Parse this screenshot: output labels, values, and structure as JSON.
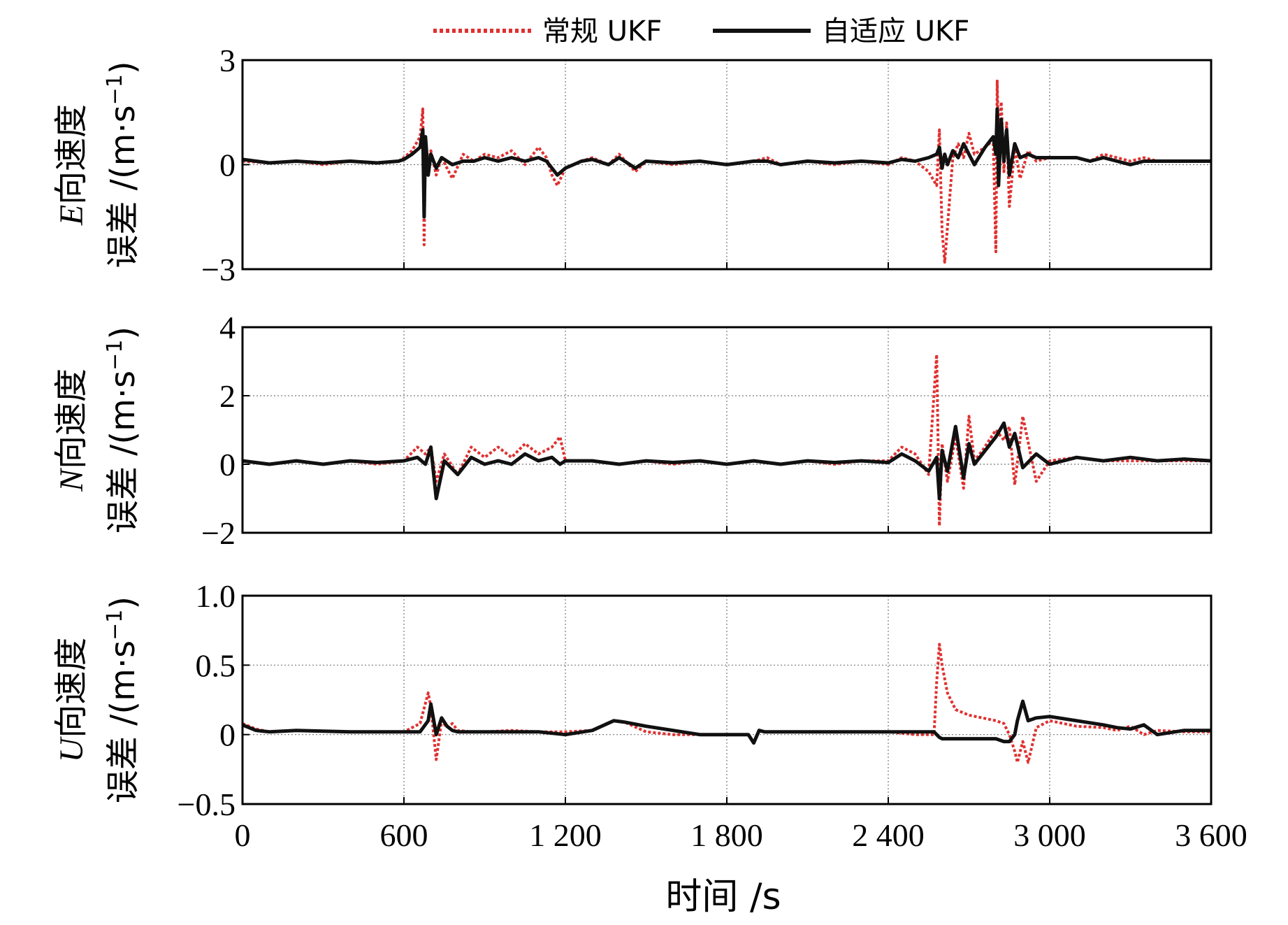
{
  "chart_data": [
    {
      "type": "line",
      "ylabel_var": "E",
      "ylabel_line1": "向速度",
      "ylabel_line2": "误差 /(m·s",
      "ylabel_sup": "−1",
      "ylabel_close": ")",
      "xlim": [
        0,
        3600
      ],
      "ylim": [
        -3,
        3
      ],
      "yticks": [
        -3,
        0,
        3
      ],
      "ytick_labels": [
        "−3",
        "0",
        "3"
      ],
      "grid": true,
      "series": [
        {
          "name": "常规 UKF",
          "color": "#e03030",
          "dash": "dotted",
          "x": [
            0,
            100,
            200,
            300,
            400,
            500,
            580,
            600,
            630,
            660,
            670,
            675,
            680,
            690,
            700,
            720,
            740,
            780,
            820,
            860,
            900,
            950,
            1000,
            1050,
            1100,
            1130,
            1150,
            1170,
            1200,
            1260,
            1300,
            1360,
            1400,
            1460,
            1500,
            1600,
            1700,
            1800,
            1900,
            1950,
            2000,
            2100,
            2200,
            2300,
            2400,
            2450,
            2500,
            2550,
            2580,
            2590,
            2600,
            2610,
            2620,
            2640,
            2660,
            2680,
            2700,
            2720,
            2760,
            2790,
            2800,
            2805,
            2810,
            2820,
            2830,
            2840,
            2850,
            2870,
            2890,
            2920,
            2950,
            3000,
            3100,
            3150,
            3200,
            3250,
            3300,
            3350,
            3400,
            3500,
            3600
          ],
          "y": [
            0.1,
            0.05,
            0.1,
            0.0,
            0.1,
            0.05,
            0.1,
            0.2,
            0.4,
            0.8,
            1.6,
            -2.3,
            0.6,
            0.0,
            0.4,
            -0.3,
            0.2,
            -0.4,
            0.3,
            0.1,
            0.3,
            0.2,
            0.4,
            0.0,
            0.5,
            0.2,
            -0.3,
            -0.6,
            -0.1,
            0.1,
            0.2,
            0.0,
            0.3,
            -0.2,
            0.1,
            0.0,
            0.1,
            0.0,
            0.1,
            0.2,
            0.0,
            0.1,
            0.0,
            0.1,
            0.0,
            0.2,
            0.1,
            -0.2,
            -0.6,
            1.0,
            -1.9,
            -2.8,
            -1.8,
            0.2,
            0.6,
            0.2,
            0.9,
            0.3,
            0.5,
            0.7,
            -2.5,
            2.4,
            0.5,
            1.8,
            -0.2,
            1.2,
            -1.2,
            0.5,
            -0.4,
            0.4,
            0.1,
            0.2,
            0.2,
            0.1,
            0.3,
            0.2,
            0.1,
            0.2,
            0.1,
            0.1,
            0.1
          ]
        },
        {
          "name": "自适应 UKF",
          "color": "#111111",
          "dash": "solid",
          "x": [
            0,
            100,
            200,
            300,
            400,
            500,
            580,
            600,
            630,
            660,
            670,
            675,
            680,
            690,
            700,
            720,
            740,
            780,
            820,
            860,
            900,
            950,
            1000,
            1050,
            1100,
            1130,
            1150,
            1170,
            1200,
            1260,
            1300,
            1360,
            1400,
            1460,
            1500,
            1600,
            1700,
            1800,
            1900,
            1950,
            2000,
            2100,
            2200,
            2300,
            2400,
            2450,
            2500,
            2550,
            2580,
            2590,
            2600,
            2610,
            2620,
            2640,
            2660,
            2680,
            2700,
            2720,
            2760,
            2790,
            2800,
            2805,
            2810,
            2820,
            2830,
            2840,
            2850,
            2870,
            2890,
            2920,
            2950,
            3000,
            3100,
            3150,
            3200,
            3250,
            3300,
            3350,
            3400,
            3500,
            3600
          ],
          "y": [
            0.15,
            0.05,
            0.1,
            0.05,
            0.1,
            0.05,
            0.1,
            0.15,
            0.3,
            0.5,
            1.0,
            -1.5,
            0.8,
            -0.3,
            0.3,
            -0.1,
            0.2,
            0.0,
            0.1,
            0.1,
            0.2,
            0.1,
            0.2,
            0.1,
            0.2,
            0.1,
            -0.1,
            -0.3,
            -0.1,
            0.1,
            0.15,
            0.0,
            0.2,
            -0.1,
            0.1,
            0.05,
            0.1,
            0.0,
            0.1,
            0.1,
            0.0,
            0.1,
            0.05,
            0.1,
            0.05,
            0.15,
            0.1,
            0.2,
            0.3,
            0.5,
            -0.1,
            0.3,
            0.0,
            0.4,
            0.2,
            0.6,
            0.3,
            0.0,
            0.5,
            0.8,
            0.3,
            1.6,
            -0.6,
            1.3,
            0.1,
            1.0,
            -0.3,
            0.6,
            0.2,
            0.3,
            0.2,
            0.2,
            0.2,
            0.1,
            0.2,
            0.1,
            0.0,
            0.1,
            0.1,
            0.1,
            0.1
          ]
        }
      ]
    },
    {
      "type": "line",
      "ylabel_var": "N",
      "ylabel_line1": "向速度",
      "ylabel_line2": "误差 /(m·s",
      "ylabel_sup": "−1",
      "ylabel_close": ")",
      "xlim": [
        0,
        3600
      ],
      "ylim": [
        -2,
        4
      ],
      "yticks": [
        -2,
        0,
        2,
        4
      ],
      "ytick_labels": [
        "−2",
        "0",
        "2",
        "4"
      ],
      "grid": true,
      "series": [
        {
          "name": "常规 UKF",
          "color": "#e03030",
          "dash": "dotted",
          "x": [
            0,
            100,
            200,
            300,
            400,
            500,
            600,
            650,
            680,
            700,
            720,
            750,
            800,
            850,
            900,
            950,
            1000,
            1050,
            1100,
            1150,
            1180,
            1200,
            1300,
            1400,
            1500,
            1600,
            1700,
            1800,
            1900,
            2000,
            2100,
            2200,
            2300,
            2400,
            2450,
            2500,
            2550,
            2580,
            2590,
            2600,
            2620,
            2650,
            2680,
            2700,
            2720,
            2750,
            2800,
            2830,
            2850,
            2870,
            2900,
            2950,
            3000,
            3100,
            3200,
            3300,
            3400,
            3500,
            3600
          ],
          "y": [
            0.1,
            0.0,
            0.1,
            0.0,
            0.1,
            0.0,
            0.1,
            0.5,
            0.3,
            0.5,
            -0.5,
            0.3,
            -0.3,
            0.5,
            0.2,
            0.5,
            0.2,
            0.6,
            0.3,
            0.5,
            0.8,
            0.1,
            0.1,
            0.0,
            0.1,
            0.0,
            0.1,
            0.0,
            0.1,
            0.0,
            0.1,
            0.0,
            0.1,
            0.1,
            0.5,
            0.3,
            -0.3,
            3.2,
            -1.8,
            0.6,
            -0.5,
            0.8,
            -0.7,
            1.4,
            0.1,
            0.4,
            1.0,
            0.7,
            1.1,
            -0.6,
            1.4,
            -0.5,
            0.1,
            0.2,
            0.1,
            0.1,
            0.1,
            0.1,
            0.1
          ]
        },
        {
          "name": "自适应 UKF",
          "color": "#111111",
          "dash": "solid",
          "x": [
            0,
            100,
            200,
            300,
            400,
            500,
            600,
            650,
            680,
            700,
            720,
            750,
            800,
            850,
            900,
            950,
            1000,
            1050,
            1100,
            1150,
            1180,
            1200,
            1300,
            1400,
            1500,
            1600,
            1700,
            1800,
            1900,
            2000,
            2100,
            2200,
            2300,
            2400,
            2450,
            2500,
            2550,
            2580,
            2590,
            2600,
            2620,
            2650,
            2680,
            2700,
            2720,
            2750,
            2800,
            2830,
            2850,
            2870,
            2900,
            2950,
            3000,
            3100,
            3200,
            3300,
            3400,
            3500,
            3600
          ],
          "y": [
            0.1,
            0.0,
            0.1,
            0.0,
            0.1,
            0.05,
            0.1,
            0.2,
            0.0,
            0.5,
            -1.0,
            0.1,
            -0.3,
            0.2,
            0.0,
            0.1,
            0.0,
            0.3,
            0.1,
            0.2,
            0.0,
            0.1,
            0.1,
            0.0,
            0.1,
            0.05,
            0.1,
            0.0,
            0.1,
            0.0,
            0.1,
            0.05,
            0.1,
            0.05,
            0.3,
            0.1,
            -0.2,
            0.2,
            -1.0,
            0.4,
            -0.2,
            1.1,
            -0.4,
            0.6,
            0.0,
            0.3,
            0.8,
            1.2,
            0.5,
            0.9,
            -0.1,
            0.3,
            0.0,
            0.2,
            0.1,
            0.2,
            0.1,
            0.15,
            0.1
          ]
        }
      ]
    },
    {
      "type": "line",
      "ylabel_var": "U",
      "ylabel_line1": "向速度",
      "ylabel_line2": "误差 /(m·s",
      "ylabel_sup": "−1",
      "ylabel_close": ")",
      "xlim": [
        0,
        3600
      ],
      "ylim": [
        -0.5,
        1.0
      ],
      "yticks": [
        -0.5,
        0,
        0.5,
        1.0
      ],
      "ytick_labels": [
        "−0.5",
        "0",
        "0.5",
        "1.0"
      ],
      "grid": true,
      "xticks": [
        0,
        600,
        1200,
        1800,
        2400,
        3000,
        3600
      ],
      "xtick_labels": [
        "0",
        "600",
        "1 200",
        "1 800",
        "2 400",
        "3 000",
        "3 600"
      ],
      "xlabel": "时间 /s",
      "series": [
        {
          "name": "常规 UKF",
          "color": "#e03030",
          "dash": "dotted",
          "x": [
            0,
            50,
            100,
            200,
            400,
            600,
            660,
            690,
            700,
            720,
            740,
            760,
            780,
            800,
            850,
            900,
            1000,
            1100,
            1200,
            1300,
            1380,
            1420,
            1500,
            1600,
            1700,
            1800,
            1880,
            1900,
            1920,
            1940,
            2000,
            2100,
            2200,
            2300,
            2400,
            2500,
            2570,
            2580,
            2590,
            2600,
            2620,
            2650,
            2700,
            2750,
            2800,
            2830,
            2850,
            2870,
            2880,
            2900,
            2920,
            2950,
            3000,
            3100,
            3200,
            3250,
            3300,
            3350,
            3400,
            3500,
            3600
          ],
          "y": [
            0.08,
            0.04,
            0.02,
            0.03,
            0.02,
            0.02,
            0.08,
            0.3,
            0.2,
            -0.18,
            0.1,
            0.05,
            0.08,
            0.03,
            0.02,
            0.02,
            0.03,
            0.02,
            0.02,
            0.03,
            0.1,
            0.09,
            0.02,
            0.0,
            0.0,
            0.0,
            0.0,
            -0.05,
            0.03,
            0.02,
            0.02,
            0.02,
            0.02,
            0.02,
            0.02,
            0.0,
            0.0,
            0.38,
            0.65,
            0.5,
            0.3,
            0.18,
            0.14,
            0.12,
            0.1,
            0.08,
            0.0,
            -0.12,
            -0.2,
            -0.05,
            -0.2,
            0.05,
            0.1,
            0.06,
            0.05,
            0.03,
            0.06,
            0.0,
            0.03,
            0.02,
            0.02
          ]
        },
        {
          "name": "自适应 UKF",
          "color": "#111111",
          "dash": "solid",
          "x": [
            0,
            50,
            100,
            200,
            400,
            600,
            660,
            690,
            700,
            720,
            740,
            760,
            780,
            800,
            850,
            900,
            1000,
            1100,
            1200,
            1300,
            1380,
            1420,
            1500,
            1600,
            1700,
            1800,
            1880,
            1900,
            1920,
            1940,
            2000,
            2100,
            2200,
            2300,
            2400,
            2500,
            2570,
            2580,
            2590,
            2600,
            2620,
            2650,
            2700,
            2750,
            2800,
            2830,
            2850,
            2870,
            2880,
            2900,
            2920,
            2950,
            3000,
            3100,
            3200,
            3250,
            3300,
            3350,
            3400,
            3500,
            3600
          ],
          "y": [
            0.07,
            0.03,
            0.02,
            0.03,
            0.02,
            0.02,
            0.02,
            0.1,
            0.22,
            0.0,
            0.12,
            0.06,
            0.03,
            0.02,
            0.02,
            0.02,
            0.02,
            0.02,
            0.0,
            0.03,
            0.1,
            0.09,
            0.06,
            0.03,
            0.0,
            0.0,
            0.0,
            -0.06,
            0.03,
            0.02,
            0.02,
            0.02,
            0.02,
            0.02,
            0.02,
            0.02,
            0.02,
            0.0,
            -0.02,
            -0.03,
            -0.03,
            -0.03,
            -0.03,
            -0.03,
            -0.03,
            -0.05,
            -0.05,
            0.0,
            0.1,
            0.24,
            0.1,
            0.12,
            0.13,
            0.1,
            0.07,
            0.05,
            0.04,
            0.07,
            0.0,
            0.03,
            0.03
          ]
        }
      ]
    }
  ],
  "legend": {
    "placement": "top",
    "items": [
      {
        "label": "常规 UKF",
        "color": "#e03030",
        "dash": "dotted"
      },
      {
        "label": "自适应 UKF",
        "color": "#111111",
        "dash": "solid"
      }
    ]
  }
}
